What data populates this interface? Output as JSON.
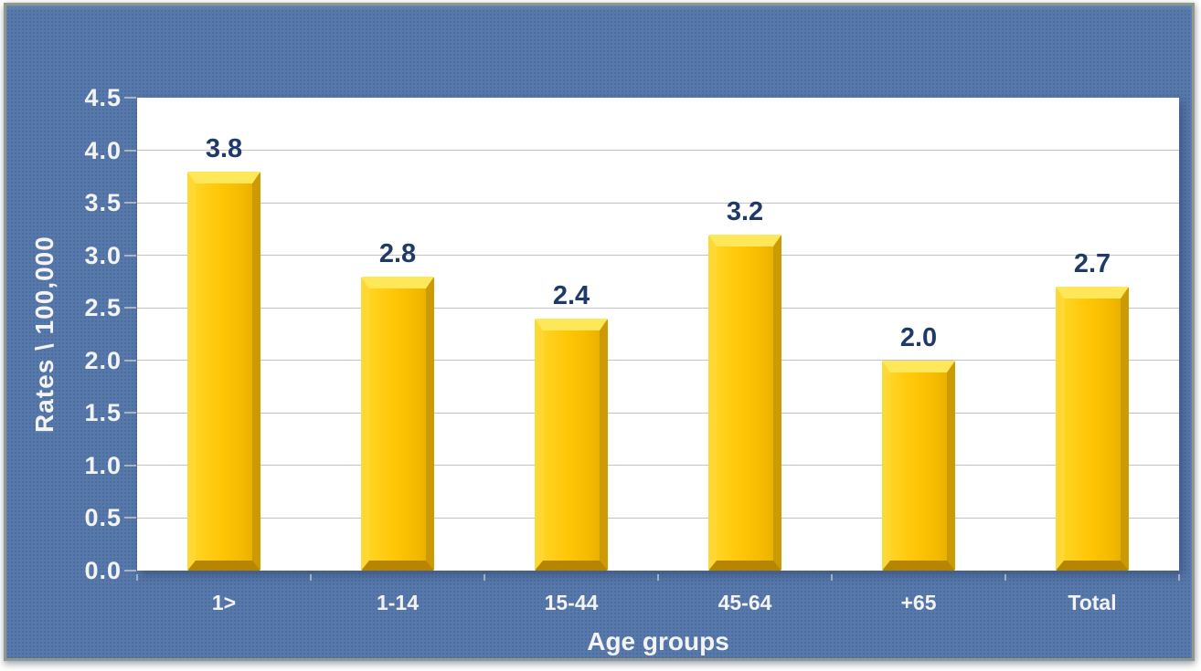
{
  "chart_data": {
    "type": "bar",
    "title": "",
    "categories": [
      "1>",
      "1-14",
      "15-44",
      "45-64",
      "+65",
      "Total"
    ],
    "values": [
      3.8,
      2.8,
      2.4,
      3.2,
      2.0,
      2.7
    ],
    "value_labels": [
      "3.8",
      "2.8",
      "2.4",
      "3.2",
      "2.0",
      "2.7"
    ],
    "xlabel": "Age groups",
    "ylabel": "Rates \\ 100,000",
    "ylim": [
      0,
      4.5
    ],
    "yticks": [
      0,
      0.5,
      1,
      1.5,
      2,
      2.5,
      3,
      3.5,
      4,
      4.5
    ],
    "ytick_labels": [
      "0.0",
      "0.5",
      "1.0",
      "1.5",
      "2.0",
      "2.5",
      "3.0",
      "3.5",
      "4.0",
      "4.5"
    ],
    "grid": true,
    "legend": false,
    "layout_hints": {
      "gridlines": "horizontal only",
      "bar_style": "3d-beveled",
      "value_labels_position": "above bars"
    },
    "colors": {
      "panel_background": "#5678aa",
      "panel_border": "#90978c",
      "plot_background": "#ffffff",
      "gridline": "#c2c2c2",
      "bar_body": "#ffc606",
      "bar_bevel_top": "#ffe75a",
      "bar_bevel_left": "#ffd835",
      "bar_bevel_right": "#cc9a02",
      "bar_bevel_bottom": "#b78500",
      "value_label": "#1f3a68",
      "axis_text": "#f3f3f3"
    }
  }
}
